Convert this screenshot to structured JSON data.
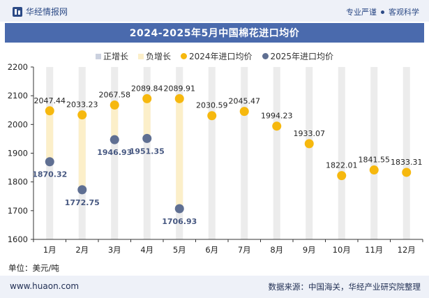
{
  "brand": {
    "name": "华经情报网"
  },
  "slogan": {
    "left": "专业严谨",
    "right": "客观科学"
  },
  "legend": {
    "pos": "正增长",
    "neg": "负增长",
    "s2024": "2024年进口均价",
    "s2025": "2025年进口均价"
  },
  "unit_label": "单位：美元/吨",
  "footer": {
    "website": "www.huaon.com",
    "source": "数据来源：中国海关，华经产业研究院整理"
  },
  "colors": {
    "title_bg": "#4a6aad",
    "series_2024": "#f6b80e",
    "series_2025": "#5f6f92",
    "neg_growth": "#fcefc9",
    "pos_growth": "#cbd1df",
    "column_bg": "#ececec"
  },
  "chart_data": {
    "type": "scatter",
    "title": "2024-2025年5月中国棉花进口均价",
    "categories": [
      "1月",
      "2月",
      "3月",
      "4月",
      "5月",
      "6月",
      "7月",
      "8月",
      "9月",
      "10月",
      "11月",
      "12月"
    ],
    "series": [
      {
        "name": "2024年进口均价",
        "values": [
          2047.44,
          2033.23,
          2067.58,
          2089.84,
          2089.91,
          2030.59,
          2045.47,
          1994.23,
          1933.07,
          1822.01,
          1841.55,
          1833.31
        ]
      },
      {
        "name": "2025年进口均价",
        "values": [
          1870.32,
          1772.75,
          1946.93,
          1951.35,
          1706.93,
          null,
          null,
          null,
          null,
          null,
          null,
          null
        ]
      }
    ],
    "ylim": [
      1600,
      2200
    ],
    "yticks": [
      1600,
      1700,
      1800,
      1900,
      2000,
      2100,
      2200
    ],
    "legend_position": "top-center",
    "grid": false
  }
}
